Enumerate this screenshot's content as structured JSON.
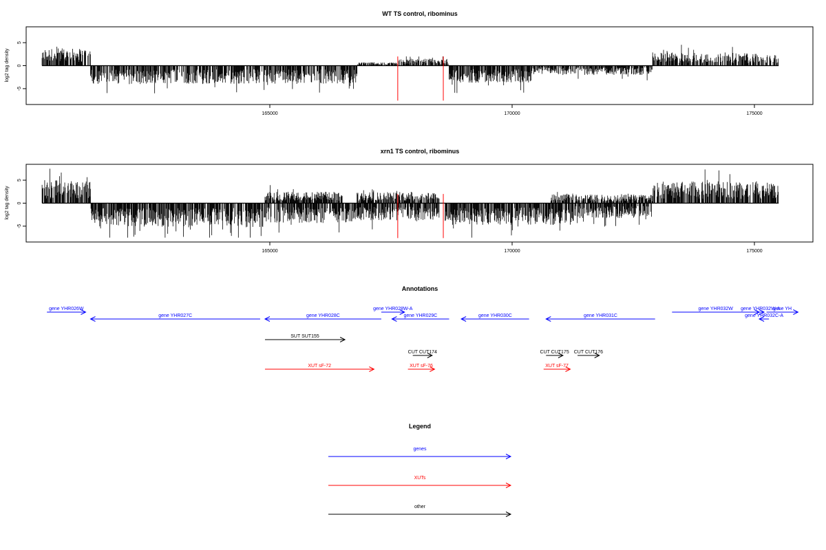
{
  "colors": {
    "gene": "#0000ff",
    "xut": "#ff0000",
    "other": "#000000",
    "marker": "#ff0000",
    "bar": "#000000"
  },
  "chart_data": [
    {
      "type": "bar",
      "title": "WT TS control, ribominus",
      "ylabel": "log2 tag density",
      "xlim": [
        160200,
        175800
      ],
      "ylim": [
        -8,
        8
      ],
      "xticks": [
        165000,
        170000,
        175000
      ],
      "yticks": [
        -5,
        0,
        5
      ],
      "markers_x": [
        167640,
        168580
      ],
      "profile": [
        {
          "from": 160300,
          "to": 161300,
          "level": 3.0,
          "sign": 1
        },
        {
          "from": 161300,
          "to": 166800,
          "level": 3.2,
          "sign": -1
        },
        {
          "from": 166800,
          "to": 167600,
          "level": 0.6,
          "sign": 1
        },
        {
          "from": 167600,
          "to": 168700,
          "level": 1.2,
          "sign": 1
        },
        {
          "from": 168700,
          "to": 170400,
          "level": 3.0,
          "sign": -1
        },
        {
          "from": 170400,
          "to": 171400,
          "level": 1.5,
          "sign": -1
        },
        {
          "from": 171400,
          "to": 172900,
          "level": 1.6,
          "sign": -1
        },
        {
          "from": 172900,
          "to": 175500,
          "level": 2.3,
          "sign": 1
        }
      ]
    },
    {
      "type": "bar",
      "title": "xrn1 TS control, ribominus",
      "ylabel": "log2 tag density",
      "xlim": [
        160200,
        175800
      ],
      "ylim": [
        -8,
        8
      ],
      "xticks": [
        165000,
        170000,
        175000
      ],
      "yticks": [
        -5,
        0,
        5
      ],
      "markers_x": [
        167640,
        168580
      ],
      "profile": [
        {
          "from": 160300,
          "to": 161300,
          "level": 4.0,
          "sign": 1
        },
        {
          "from": 161300,
          "to": 164900,
          "level": 4.2,
          "sign": -1
        },
        {
          "from": 164900,
          "to": 166500,
          "level": 2.0,
          "sign": 1
        },
        {
          "from": 164900,
          "to": 166800,
          "level": 3.5,
          "sign": -1
        },
        {
          "from": 166800,
          "to": 168500,
          "level": 2.0,
          "sign": 1
        },
        {
          "from": 166800,
          "to": 168500,
          "level": 3.0,
          "sign": -1
        },
        {
          "from": 168600,
          "to": 171300,
          "level": 3.8,
          "sign": -1
        },
        {
          "from": 170800,
          "to": 172900,
          "level": 1.5,
          "sign": 1
        },
        {
          "from": 171300,
          "to": 172900,
          "level": 2.6,
          "sign": -1
        },
        {
          "from": 172900,
          "to": 175500,
          "level": 3.8,
          "sign": 1
        }
      ]
    }
  ],
  "annotations": {
    "title": "Annotations",
    "features": [
      {
        "label": "gene YHR026W",
        "kind": "gene",
        "start": 160400,
        "end": 161200,
        "strand": "+",
        "row": 0
      },
      {
        "label": "gene YHR027C",
        "kind": "gene",
        "start": 161300,
        "end": 164800,
        "strand": "-",
        "row": 1
      },
      {
        "label": "gene YHR028C",
        "kind": "gene",
        "start": 164900,
        "end": 167300,
        "strand": "-",
        "row": 1
      },
      {
        "label": "gene YHR028W-A",
        "kind": "gene",
        "start": 167300,
        "end": 167780,
        "strand": "+",
        "row": 0
      },
      {
        "label": "gene YHR029C",
        "kind": "gene",
        "start": 167520,
        "end": 168700,
        "strand": "-",
        "row": 1
      },
      {
        "label": "gene YHR030C",
        "kind": "gene",
        "start": 168950,
        "end": 170350,
        "strand": "-",
        "row": 1
      },
      {
        "label": "gene YHR031C",
        "kind": "gene",
        "start": 170700,
        "end": 172950,
        "strand": "-",
        "row": 1
      },
      {
        "label": "gene YHR032W",
        "kind": "gene",
        "start": 173300,
        "end": 175100,
        "strand": "+",
        "row": 0
      },
      {
        "label": "gene YHR032W-A",
        "kind": "gene",
        "start": 175050,
        "end": 175200,
        "strand": "+",
        "row": 0
      },
      {
        "label": "gene YH",
        "kind": "gene",
        "start": 175250,
        "end": 175900,
        "strand": "+",
        "row": 0
      },
      {
        "label": "gene YHR032C-A",
        "kind": "gene",
        "start": 175100,
        "end": 175300,
        "strand": "-",
        "row": 1
      },
      {
        "label": "SUT SUT155",
        "kind": "other",
        "start": 164900,
        "end": 166550,
        "strand": "+",
        "row": 2
      },
      {
        "label": "CUT CUT174",
        "kind": "other",
        "start": 167950,
        "end": 168350,
        "strand": "+",
        "row": 3
      },
      {
        "label": "CUT CUT175",
        "kind": "other",
        "start": 170700,
        "end": 171050,
        "strand": "+",
        "row": 3
      },
      {
        "label": "CUT CUT176",
        "kind": "other",
        "start": 171350,
        "end": 171800,
        "strand": "+",
        "row": 3
      },
      {
        "label": "XUT sF-72",
        "kind": "xut",
        "start": 164900,
        "end": 167150,
        "strand": "+",
        "row": 4
      },
      {
        "label": "XUT sF-76",
        "kind": "xut",
        "start": 167850,
        "end": 168400,
        "strand": "+",
        "row": 4
      },
      {
        "label": "XUT sF-77",
        "kind": "xut",
        "start": 170650,
        "end": 171200,
        "strand": "+",
        "row": 4
      }
    ]
  },
  "legend": {
    "title": "Legend",
    "items": [
      {
        "label": "genes",
        "kind": "gene"
      },
      {
        "label": "XUTs",
        "kind": "xut"
      },
      {
        "label": "other",
        "kind": "other"
      }
    ]
  }
}
